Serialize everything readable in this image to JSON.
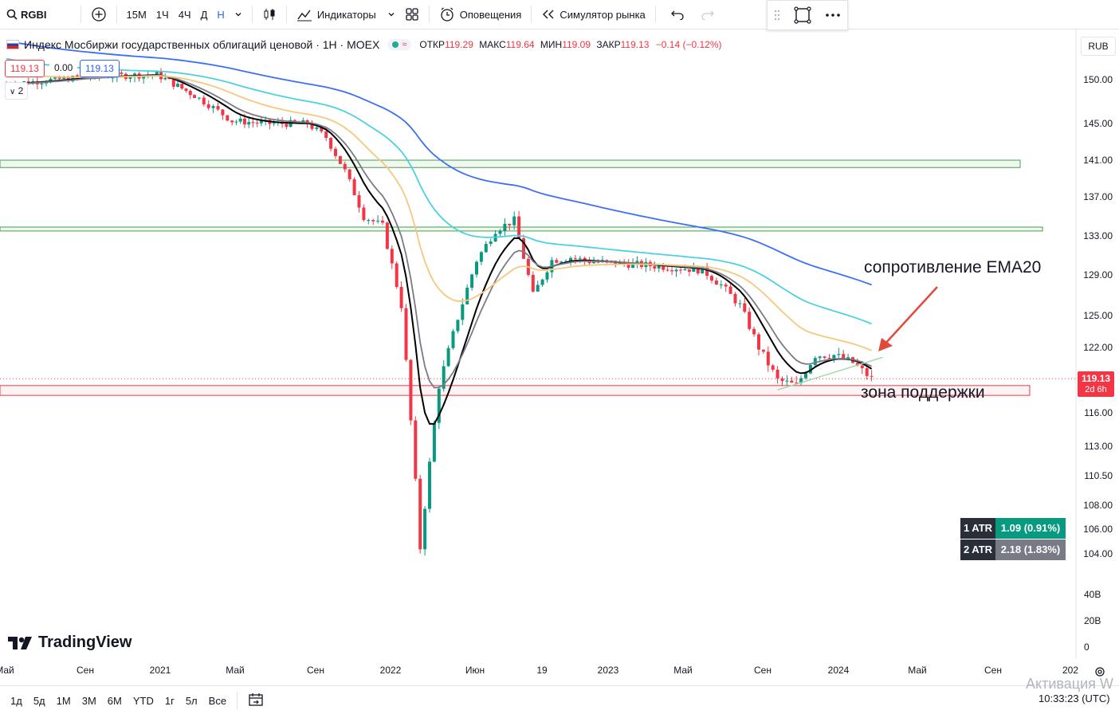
{
  "toolbar": {
    "symbol": "RGBI",
    "intervals": [
      "15М",
      "1Ч",
      "4Ч",
      "Д",
      "Н"
    ],
    "indicators_label": "Индикаторы",
    "alerts_label": "Оповещения",
    "replay_label": "Симулятор рынка"
  },
  "legend": {
    "title": "Индекс Мосбиржи государственных облигаций ценовой · 1Н · MOEX",
    "open_label": "ОТКР",
    "open": "119.29",
    "high_label": "МАКС",
    "high": "119.64",
    "low_label": "МИН",
    "low": "119.09",
    "close_label": "ЗАКР",
    "close": "119.13",
    "change": "−0.14 (−0.12%)",
    "bid": "119.13",
    "spread": "0.00",
    "ask": "119.13",
    "indicators_count": "2"
  },
  "currency": "RUB",
  "price_axis": {
    "labels": [
      "150.00",
      "145.00",
      "141.00",
      "137.00",
      "133.00",
      "129.00",
      "125.00",
      "122.00",
      "116.00",
      "113.00",
      "110.50",
      "108.00",
      "106.00",
      "104.00"
    ],
    "volume_labels": [
      "40B",
      "20B",
      "0"
    ],
    "last_price": "119.13",
    "countdown": "2d 6h"
  },
  "time_axis": [
    "Май",
    "Сен",
    "2021",
    "Май",
    "Сен",
    "2022",
    "Июн",
    "19",
    "2023",
    "Май",
    "Сен",
    "2024",
    "Май",
    "Сен",
    "202"
  ],
  "atr": [
    {
      "label": "1 ATR",
      "value": "1.09 (0.91%)",
      "color": "#089981"
    },
    {
      "label": "2 ATR",
      "value": "2.18 (1.83%)",
      "color": "#787b86"
    }
  ],
  "annotations": {
    "resistance": "сопротивление EMA20",
    "support": "зона поддержки"
  },
  "logo": "TradingView",
  "range_buttons": [
    "1д",
    "5д",
    "1М",
    "3М",
    "6М",
    "YTD",
    "1г",
    "5л",
    "Все"
  ],
  "clock": "10:33:23 (UTC)",
  "watermark": "Активация W",
  "chart_data": {
    "type": "candlestick",
    "timeframe": "1W",
    "y_axis_ticks": [
      150,
      145,
      141,
      137,
      133,
      129,
      125,
      122,
      116,
      113,
      110.5,
      108,
      106,
      104
    ],
    "x_axis_ticks": [
      "Май",
      "Сен",
      "2021",
      "Май",
      "Сен",
      "2022",
      "Июн",
      "19",
      "2023",
      "Май",
      "Сен",
      "2024",
      "Май",
      "Сен",
      "202"
    ],
    "close_path": [
      [
        "2020-05",
        149.5
      ],
      [
        "2020-09",
        150.3
      ],
      [
        "2021-01",
        150.6
      ],
      [
        "2021-03",
        148.2
      ],
      [
        "2021-04",
        146.8
      ],
      [
        "2021-05",
        145.3
      ],
      [
        "2021-07",
        145.0
      ],
      [
        "2021-09",
        145.0
      ],
      [
        "2021-10",
        143.5
      ],
      [
        "2021-11",
        139.8
      ],
      [
        "2021-12",
        135.0
      ],
      [
        "2022-01",
        134.0
      ],
      [
        "2022-02",
        126.0
      ],
      [
        "2022-03",
        104.5
      ],
      [
        "2022-04",
        118.5
      ],
      [
        "2022-05",
        124.8
      ],
      [
        "2022-06",
        130.5
      ],
      [
        "2022-07",
        133.6
      ],
      [
        "2022-08",
        134.6
      ],
      [
        "2022-09",
        127.0
      ],
      [
        "2022-10",
        130.5
      ],
      [
        "2022-11",
        130.8
      ],
      [
        "2022-12",
        130.4
      ],
      [
        "2023-03",
        130.0
      ],
      [
        "2023-06",
        129.5
      ],
      [
        "2023-07",
        128.0
      ],
      [
        "2023-08",
        126.0
      ],
      [
        "2023-09",
        122.0
      ],
      [
        "2023-10",
        119.0
      ],
      [
        "2023-11",
        118.5
      ],
      [
        "2023-12",
        121.3
      ],
      [
        "2024-01",
        121.3
      ],
      [
        "2024-02",
        120.6
      ],
      [
        "2024-03",
        119.13
      ]
    ],
    "moving_averages": [
      {
        "color": "#000000",
        "end_value": 121.0
      },
      {
        "color": "#787b86",
        "end_value": 120.7
      },
      {
        "color": "#f7c77e",
        "end_value": 124.6
      },
      {
        "color": "#4dd0e1",
        "end_value": 128.0
      },
      {
        "color": "#3d6ef6",
        "end_value": 132.2
      }
    ],
    "levels": [
      {
        "type": "resistance_zone",
        "from": 140.2,
        "to": 141.0,
        "color": "#43a047"
      },
      {
        "type": "resistance_zone",
        "from": 133.5,
        "to": 133.9,
        "color": "#43a047"
      },
      {
        "type": "support_zone",
        "from": 117.6,
        "to": 118.5,
        "color": "#f23645"
      }
    ],
    "last_price": 119.13
  }
}
